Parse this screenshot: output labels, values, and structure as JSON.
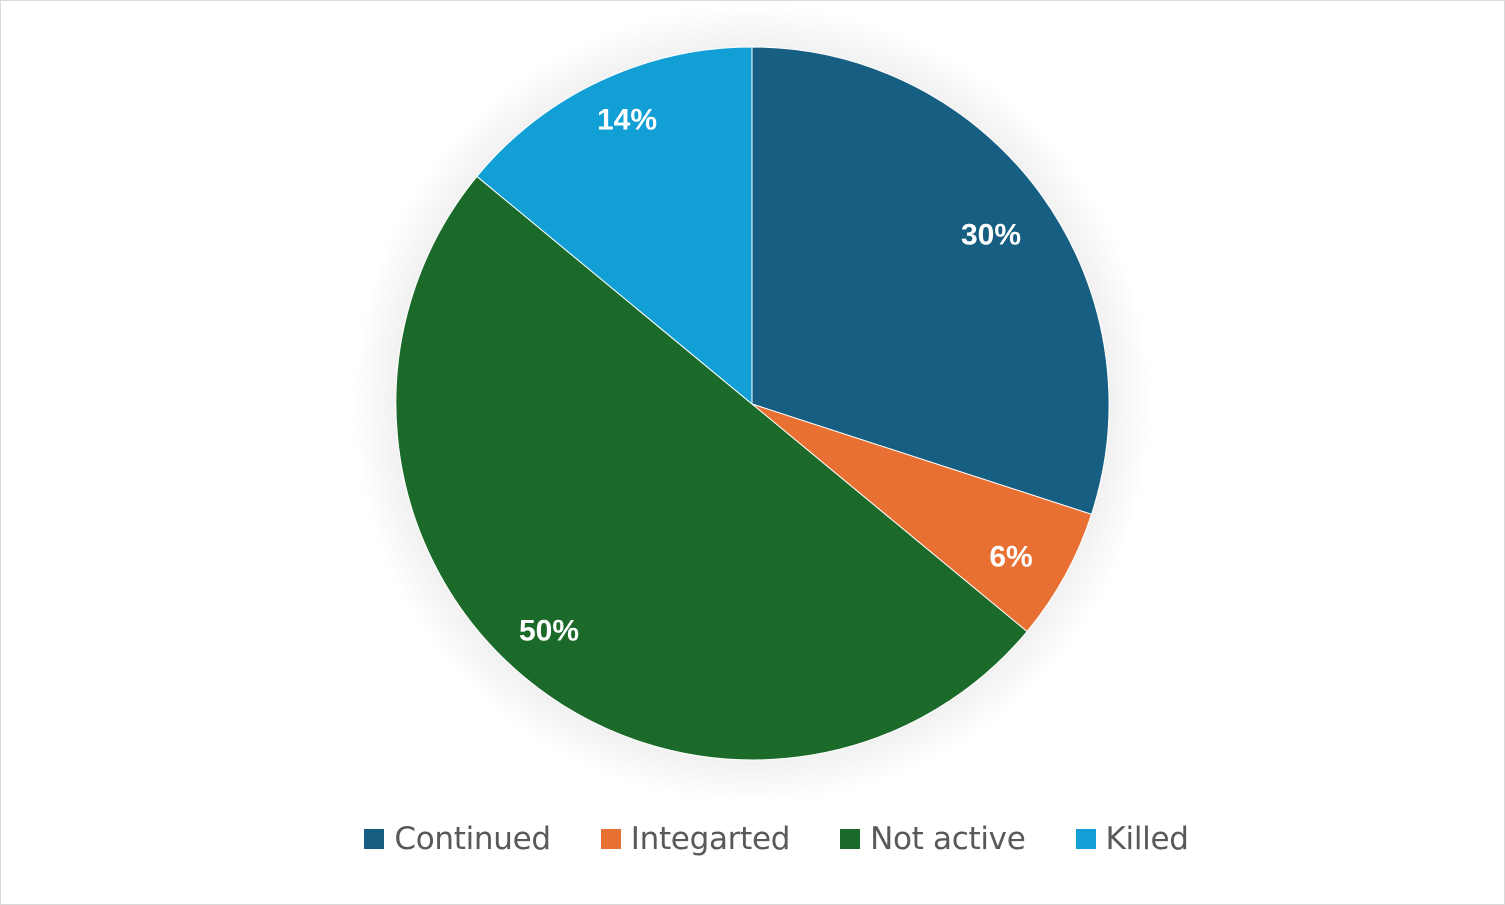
{
  "chart_data": {
    "type": "pie",
    "categories": [
      "Continued",
      "Integarted",
      "Not active",
      "Killed"
    ],
    "values": [
      30,
      6,
      50,
      14
    ],
    "data_labels": [
      "30%",
      "6%",
      "50%",
      "14%"
    ],
    "colors": [
      "#175f82",
      "#e87032",
      "#1b6a29",
      "#119fd6"
    ],
    "title": "",
    "legend_position": "bottom",
    "start_angle_deg": 0,
    "direction": "clockwise"
  }
}
